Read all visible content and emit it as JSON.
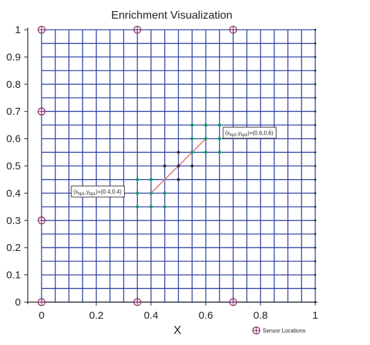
{
  "chart_data": {
    "type": "scatter",
    "title": "Enrichment Visualization",
    "xlabel": "X",
    "ylabel": "",
    "xlim": [
      0,
      1
    ],
    "ylim": [
      0,
      1
    ],
    "xticks": [
      "0",
      "0.2",
      "0.4",
      "0.6",
      "0.8",
      "1"
    ],
    "xtick_values": [
      0,
      0.2,
      0.4,
      0.6,
      0.8,
      1
    ],
    "yticks": [
      "0",
      "0.1",
      "0.2",
      "0.3",
      "0.4",
      "0.5",
      "0.6",
      "0.7",
      "0.8",
      "0.9",
      "1"
    ],
    "ytick_values": [
      0,
      0.1,
      0.2,
      0.3,
      0.4,
      0.5,
      0.6,
      0.7,
      0.8,
      0.9,
      1
    ],
    "grid_spacing": 0.05,
    "crack": {
      "start": [
        0.4,
        0.4
      ],
      "end": [
        0.6,
        0.6
      ]
    },
    "tip1_label": {
      "prefix": "(x",
      "sub1": "tip1",
      "mid": ",y",
      "sub2": "tip1",
      "suffix": ")=(0.4,0.4)",
      "anchor": [
        0.4,
        0.4
      ]
    },
    "tip2_label": {
      "prefix": "(x",
      "sub1": "tip2",
      "mid": ",y",
      "sub2": "tip2",
      "suffix": ")=(0.6,0.6)",
      "anchor": [
        0.6,
        0.6
      ]
    },
    "tip_nodes": [
      [
        0.35,
        0.35
      ],
      [
        0.4,
        0.35
      ],
      [
        0.45,
        0.35
      ],
      [
        0.35,
        0.4
      ],
      [
        0.4,
        0.4
      ],
      [
        0.45,
        0.4
      ],
      [
        0.35,
        0.45
      ],
      [
        0.4,
        0.45
      ],
      [
        0.55,
        0.55
      ],
      [
        0.6,
        0.55
      ],
      [
        0.65,
        0.55
      ],
      [
        0.55,
        0.6
      ],
      [
        0.6,
        0.6
      ],
      [
        0.65,
        0.6
      ],
      [
        0.55,
        0.65
      ],
      [
        0.6,
        0.65
      ],
      [
        0.65,
        0.65
      ]
    ],
    "heaviside_nodes": [
      [
        0.45,
        0.5
      ],
      [
        0.5,
        0.5
      ],
      [
        0.55,
        0.5
      ],
      [
        0.5,
        0.45
      ],
      [
        0.5,
        0.55
      ]
    ],
    "sensor_locations": [
      [
        0,
        1
      ],
      [
        0.35,
        1
      ],
      [
        0.7,
        1
      ],
      [
        0,
        0.7
      ],
      [
        0,
        0.3
      ],
      [
        0,
        0
      ],
      [
        0.35,
        0
      ],
      [
        0.7,
        0
      ]
    ],
    "legend": {
      "label": "Sensor Locations",
      "position": "bottom-right"
    },
    "colors": {
      "grid": "#2a3fa0",
      "axis": "#222222",
      "crack": "#e88080",
      "tip_nodes": "#1a9a6a",
      "heaviside_nodes": "#222222",
      "sensor": "#8a2f6a"
    }
  }
}
